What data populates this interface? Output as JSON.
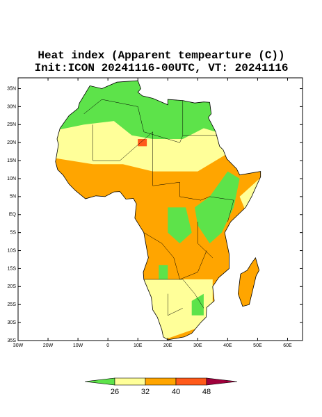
{
  "map": {
    "title": "Heat index (Apparent tempearture (C))",
    "subtitle": "Init:ICON 20241116-00UTC, VT: 20241116",
    "lonlim": [
      -30,
      65
    ],
    "latlim": [
      -35,
      38
    ],
    "lon_ticks": [
      {
        "value": -30,
        "label": "30W"
      },
      {
        "value": -20,
        "label": "20W"
      },
      {
        "value": -10,
        "label": "10W"
      },
      0,
      {
        "value": 10,
        "label": "10E"
      },
      {
        "value": 20,
        "label": "20E"
      },
      {
        "value": 30,
        "label": "30E"
      },
      {
        "value": 40,
        "label": "40E"
      },
      {
        "value": 50,
        "label": "50E"
      },
      {
        "value": 60,
        "label": "60E"
      }
    ],
    "lat_ticks": [
      {
        "value": 35,
        "label": "35N"
      },
      {
        "value": 30,
        "label": "30N"
      },
      {
        "value": 25,
        "label": "25N"
      },
      {
        "value": 20,
        "label": "20N"
      },
      {
        "value": 15,
        "label": "15N"
      },
      {
        "value": 10,
        "label": "10N"
      },
      {
        "value": 5,
        "label": "5N"
      },
      {
        "value": 0,
        "label": "EQ"
      },
      {
        "value": -5,
        "label": "5S"
      },
      {
        "value": -10,
        "label": "10S"
      },
      {
        "value": -15,
        "label": "15S"
      },
      {
        "value": -20,
        "label": "20S"
      },
      {
        "value": -25,
        "label": "25S"
      },
      {
        "value": -30,
        "label": "30S"
      },
      {
        "value": -35,
        "label": "35S"
      }
    ]
  },
  "colorbar": {
    "ticks": [
      26,
      32,
      40,
      48
    ],
    "colors": [
      "#5de34a",
      "#ffff99",
      "#ffa500",
      "#ff5a1a",
      "#a0003c"
    ]
  }
}
